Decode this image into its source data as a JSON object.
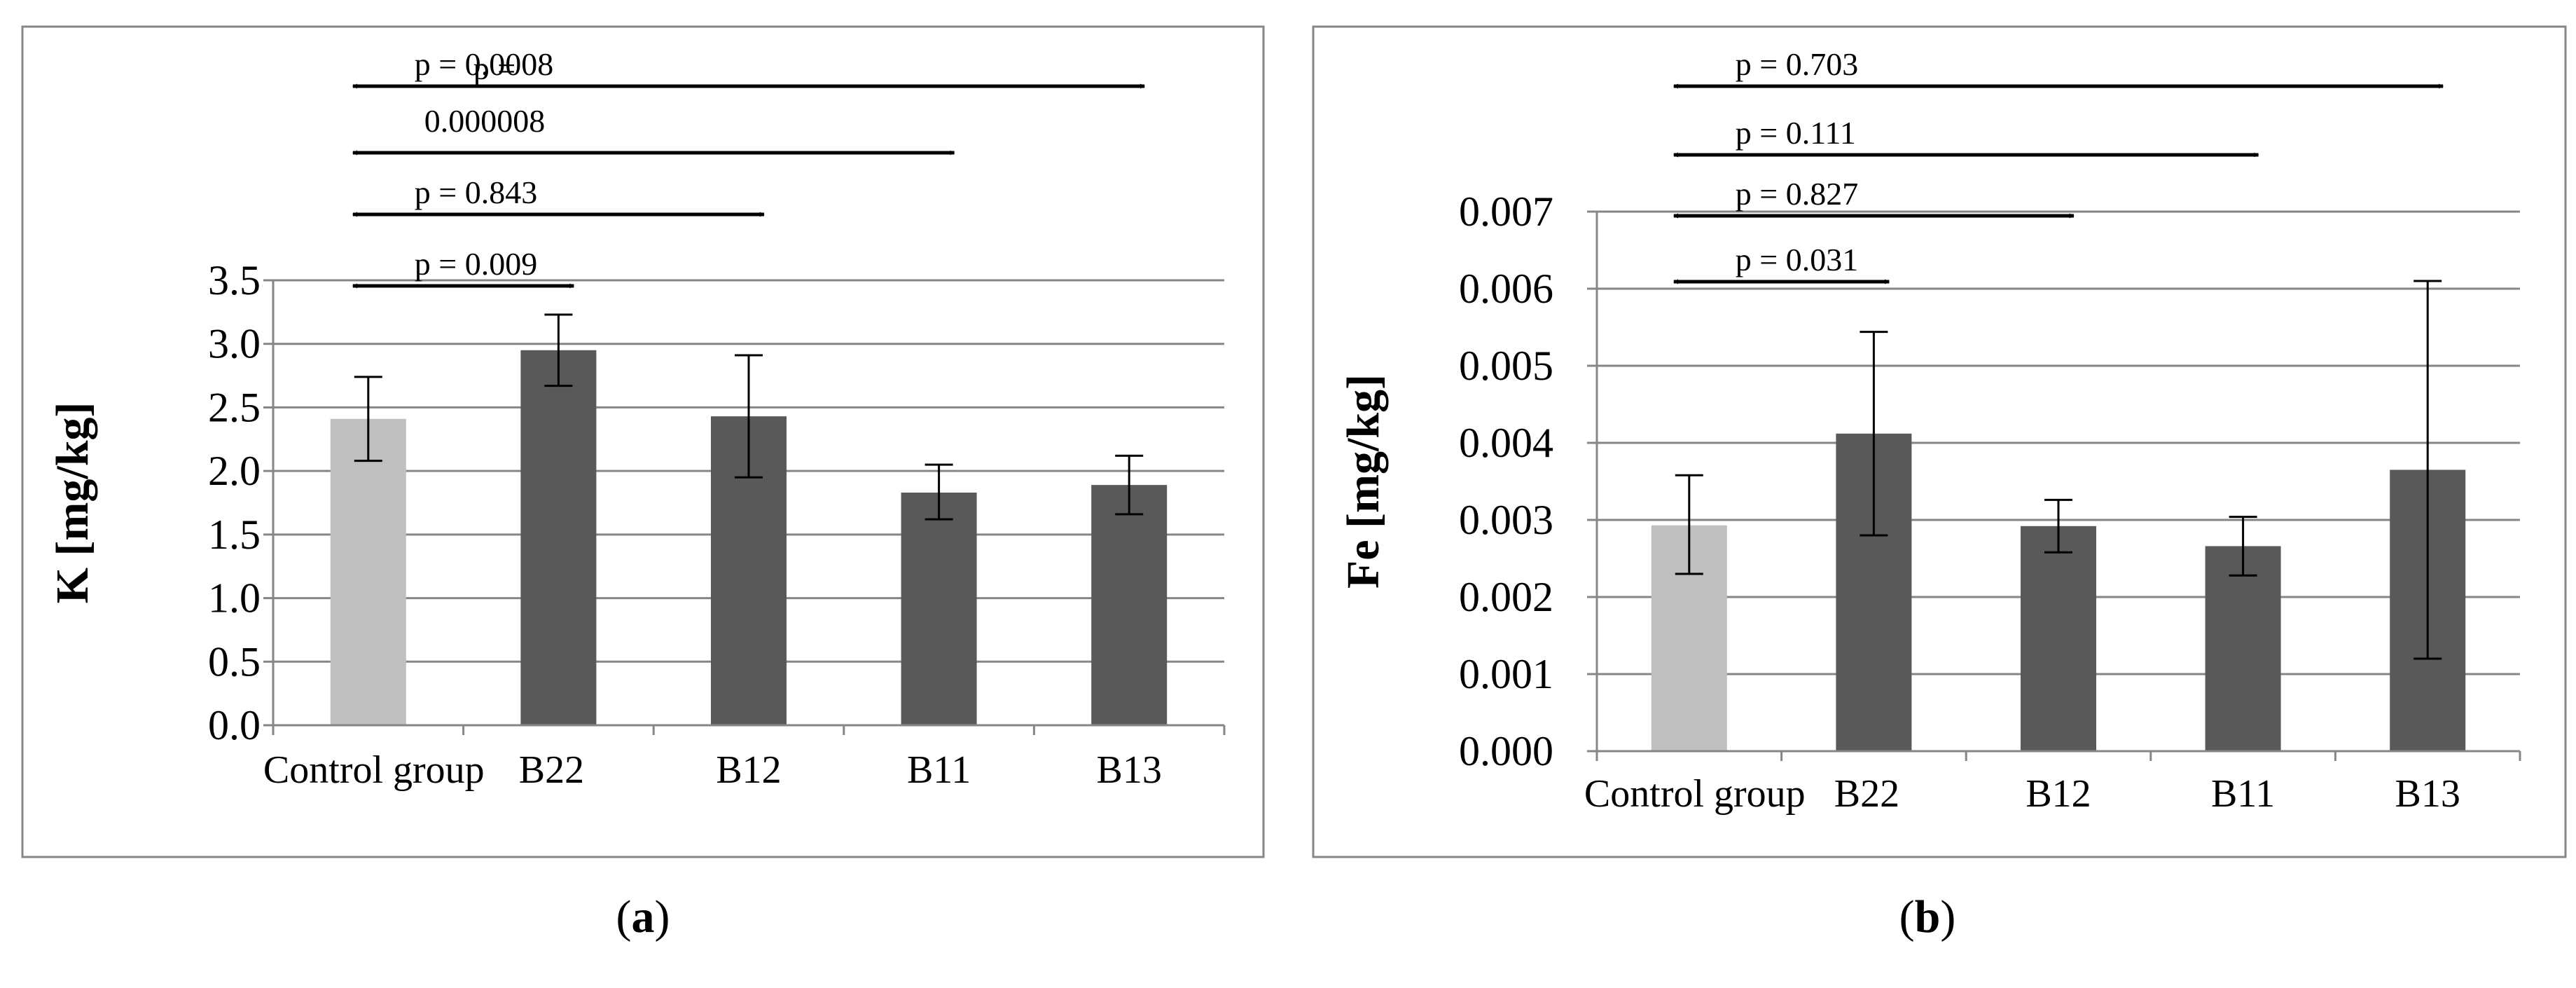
{
  "colors": {
    "control_bar": "#bfbfbf",
    "treated_bar": "#595959",
    "gridline": "#868686",
    "frame": "#868686",
    "text": "#000000"
  },
  "chart_data": [
    {
      "id": "a",
      "type": "bar",
      "caption": {
        "open": "(",
        "letter": "a",
        "close": ")"
      },
      "ylabel": "K [mg/kg]",
      "xlabel": "",
      "ylim": [
        0,
        3.5
      ],
      "yticks": [
        "0.0",
        "0.5",
        "1.0",
        "1.5",
        "2.0",
        "2.5",
        "3.0",
        "3.5"
      ],
      "categories": [
        "Control group",
        "B22",
        "B12",
        "B11",
        "B13"
      ],
      "values": [
        2.41,
        2.95,
        2.43,
        1.83,
        1.89
      ],
      "error_low": [
        2.08,
        2.67,
        1.95,
        1.62,
        1.66
      ],
      "error_high": [
        2.74,
        3.23,
        2.91,
        2.05,
        2.12
      ],
      "comparisons": [
        {
          "from": "Control group",
          "to": "B13",
          "lines": [
            "p = 0.0008"
          ]
        },
        {
          "from": "Control group",
          "to": "B11",
          "lines": [
            "p =",
            "0.000008"
          ]
        },
        {
          "from": "Control group",
          "to": "B12",
          "lines": [
            "p = 0.843"
          ]
        },
        {
          "from": "Control group",
          "to": "B22",
          "lines": [
            "p = 0.009"
          ]
        }
      ]
    },
    {
      "id": "b",
      "type": "bar",
      "caption": {
        "open": "(",
        "letter": "b",
        "close": ")"
      },
      "ylabel": "Fe [mg/kg]",
      "xlabel": "",
      "ylim": [
        0,
        0.007
      ],
      "yticks": [
        "0.000",
        "0.001",
        "0.002",
        "0.003",
        "0.004",
        "0.005",
        "0.006",
        "0.007"
      ],
      "categories": [
        "Control group",
        "B22",
        "B12",
        "B11",
        "B13"
      ],
      "values": [
        0.00293,
        0.00412,
        0.00292,
        0.00266,
        0.00365
      ],
      "error_low": [
        0.0023,
        0.0028,
        0.00258,
        0.00228,
        0.0012
      ],
      "error_high": [
        0.00358,
        0.00544,
        0.00326,
        0.00304,
        0.0061
      ],
      "comparisons": [
        {
          "from": "Control group",
          "to": "B13",
          "lines": [
            "p = 0.703"
          ]
        },
        {
          "from": "Control group",
          "to": "B11",
          "lines": [
            "p = 0.111"
          ]
        },
        {
          "from": "Control group",
          "to": "B12",
          "lines": [
            "p = 0.827"
          ]
        },
        {
          "from": "Control group",
          "to": "B22",
          "lines": [
            "p = 0.031"
          ]
        }
      ]
    }
  ]
}
